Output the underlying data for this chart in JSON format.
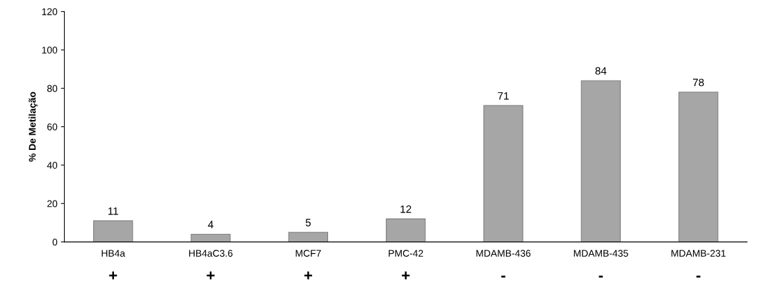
{
  "chart_data": {
    "type": "bar",
    "ylabel": "% De Metilação",
    "categories": [
      "HB4a",
      "HB4aC3.6",
      "MCF7",
      "PMC-42",
      "MDAMB-436",
      "MDAMB-435",
      "MDAMB-231"
    ],
    "values": [
      11,
      4,
      5,
      12,
      71,
      84,
      78
    ],
    "color": "#a6a6a6",
    "ylim": [
      0,
      120
    ],
    "yticks": [
      0,
      20,
      40,
      60,
      80,
      100,
      120
    ],
    "grid": false,
    "data_labels": true,
    "annotations": [
      "+",
      "+",
      "+",
      "+",
      "-",
      "-",
      "-"
    ]
  }
}
